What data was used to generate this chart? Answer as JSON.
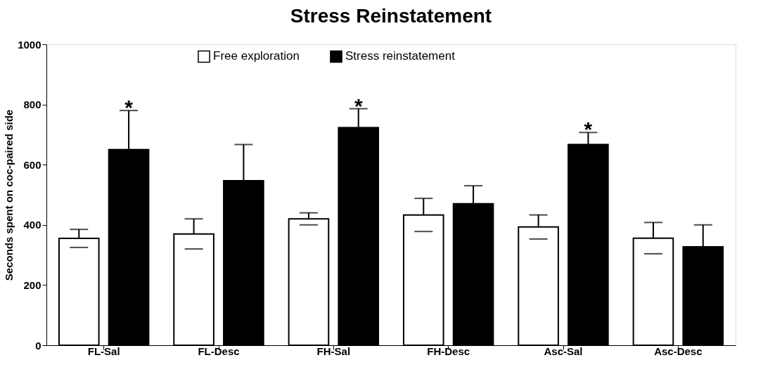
{
  "chart_data": {
    "type": "bar",
    "title": "Stress Reinstatement",
    "ylabel": "Seconds spent on coc-paired side",
    "categories": [
      "FL-Sal",
      "FL-Desc",
      "FH-Sal",
      "FH-Desc",
      "Asc-Sal",
      "Asc-Desc"
    ],
    "series": [
      {
        "name": "Free exploration",
        "color": "#ffffff",
        "values": [
          355,
          370,
          420,
          433,
          393,
          356
        ],
        "errors": [
          30,
          50,
          20,
          55,
          40,
          52
        ]
      },
      {
        "name": "Stress reinstatement",
        "color": "#000000",
        "values": [
          650,
          547,
          723,
          470,
          667,
          327
        ],
        "errors": [
          130,
          120,
          63,
          60,
          40,
          73
        ],
        "value_labels": [
          "*",
          null,
          "*",
          null,
          "*",
          null
        ]
      }
    ],
    "ylim": [
      0,
      1000
    ],
    "yticks": [
      0,
      200,
      400,
      600,
      800,
      1000
    ],
    "grid": false,
    "legend": "top"
  }
}
